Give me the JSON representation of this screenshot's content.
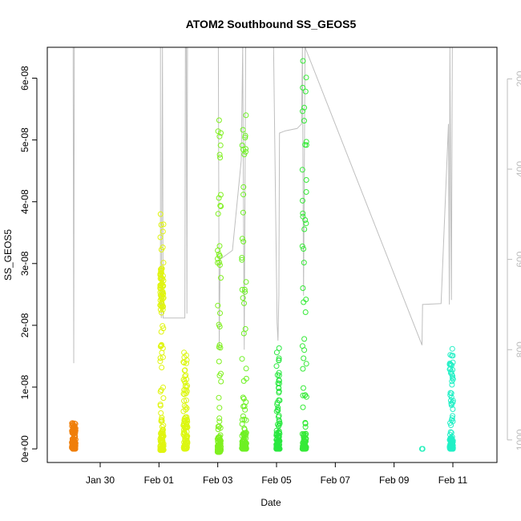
{
  "chart_data": {
    "type": "scatter",
    "title": "ATOM2 Southbound SS_GEOS5",
    "xlabel": "Date",
    "ylabel": "SS_GEOS5",
    "x_ticks": [
      "Jan 30",
      "Feb 01",
      "Feb 03",
      "Feb 05",
      "Feb 07",
      "Feb 09",
      "Feb 11"
    ],
    "y_ticks": [
      "0e+00",
      "1e-08",
      "2e-08",
      "3e-08",
      "4e-08",
      "5e-08",
      "6e-08"
    ],
    "y_tick_values": [
      0,
      1e-08,
      2e-08,
      3e-08,
      4e-08,
      5e-08,
      6e-08
    ],
    "ylim": [
      -2.2e-09,
      6.5e-08
    ],
    "xlim_days": [
      28.2,
      43.5
    ],
    "y2_ticks": [
      "200",
      "400",
      "600",
      "800",
      "1000"
    ],
    "y2_tick_values": [
      200,
      400,
      600,
      800,
      1000
    ],
    "y2_lim": [
      1050,
      130
    ],
    "y2_color": "#bdbdbd",
    "grid": false,
    "legend": "none",
    "series": [
      {
        "color": "#f07f0a",
        "x_day": 29.1,
        "x_spread": 0.13,
        "y_min": 0,
        "y_max": 4.2e-09,
        "dense_max": 2.5e-09
      },
      {
        "color": "#e0f510",
        "x_day": 32.1,
        "x_spread": 0.12,
        "y_min": -2e-10,
        "y_max": 3.8e-08,
        "dense_max": 3.2e-09,
        "cluster": [
          2.2e-08,
          2.95e-08
        ]
      },
      {
        "color": "#dcf712",
        "x_day": 32.9,
        "x_spread": 0.14,
        "y_min": 0,
        "y_max": 1.56e-08,
        "dense_max": 4.5e-09
      },
      {
        "color": "#80f020",
        "x_day": 34.05,
        "x_spread": 0.12,
        "y_min": -5e-10,
        "y_max": 5.32e-08,
        "dense_max": 2.5e-09
      },
      {
        "color": "#6ef024",
        "x_day": 34.9,
        "x_spread": 0.16,
        "y_min": 0,
        "y_max": 5.4e-08,
        "dense_max": 2.8e-09
      },
      {
        "color": "#2ae840",
        "x_day": 36.05,
        "x_spread": 0.12,
        "y_min": 0,
        "y_max": 1.63e-08,
        "dense_max": 2.5e-09
      },
      {
        "color": "#36ea38",
        "x_day": 36.95,
        "x_spread": 0.14,
        "y_min": 0,
        "y_max": 6.28e-08,
        "dense_max": 2.5e-09
      },
      {
        "color": "#26f0bc",
        "x_day": 40.95,
        "x_spread": 0.04,
        "y_min": 0,
        "y_max": 0,
        "dense_max": 0
      },
      {
        "color": "#22f0c6",
        "x_day": 41.95,
        "x_spread": 0.12,
        "y_min": 0,
        "y_max": 1.62e-08,
        "dense_max": 2e-09
      }
    ],
    "altitude_trace": {
      "color": "#bfbfbf",
      "points": [
        [
          29.08,
          130
        ],
        [
          29.08,
          190
        ],
        [
          29.1,
          830
        ],
        [
          29.12,
          130
        ],
        [
          32.05,
          130
        ],
        [
          32.05,
          680
        ],
        [
          32.08,
          730
        ],
        [
          32.12,
          130
        ],
        [
          32.14,
          730
        ],
        [
          32.88,
          730
        ],
        [
          32.9,
          130
        ],
        [
          32.93,
          130
        ],
        [
          32.95,
          720
        ],
        [
          32.97,
          130
        ],
        [
          34.02,
          130
        ],
        [
          34.05,
          800
        ],
        [
          34.08,
          600
        ],
        [
          34.5,
          580
        ],
        [
          34.8,
          380
        ],
        [
          34.85,
          130
        ],
        [
          34.9,
          800
        ],
        [
          34.95,
          130
        ],
        [
          35.9,
          130
        ],
        [
          36.02,
          740
        ],
        [
          36.05,
          780
        ],
        [
          36.08,
          680
        ],
        [
          36.1,
          320
        ],
        [
          36.3,
          315
        ],
        [
          36.7,
          310
        ],
        [
          36.85,
          300
        ],
        [
          36.88,
          130
        ],
        [
          36.92,
          680
        ],
        [
          36.97,
          130
        ],
        [
          40.95,
          790
        ],
        [
          40.97,
          700
        ],
        [
          41.6,
          698
        ],
        [
          41.85,
          300
        ],
        [
          41.88,
          700
        ],
        [
          41.9,
          130
        ],
        [
          41.95,
          690
        ],
        [
          41.98,
          130
        ]
      ]
    }
  }
}
